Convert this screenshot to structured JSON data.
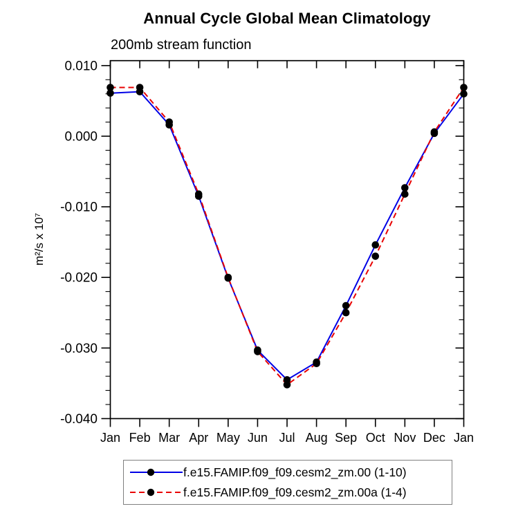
{
  "page": {
    "background": "#ffffff"
  },
  "chart_data": {
    "type": "line",
    "title": "Annual Cycle Global Mean Climatology",
    "subtitle": "200mb stream function",
    "ylabel": "m²/s x 10⁷",
    "xlabel": "",
    "categories": [
      "Jan",
      "Feb",
      "Mar",
      "Apr",
      "May",
      "Jun",
      "Jul",
      "Aug",
      "Sep",
      "Oct",
      "Nov",
      "Dec",
      "Jan"
    ],
    "y_axis": {
      "min": -0.04,
      "max": 0.0107,
      "major_tick_interval": 0.01,
      "minor_tick_interval": 0.002,
      "tick_labels": [
        "0.010",
        "0.000",
        "-0.010",
        "-0.020",
        "-0.030",
        "-0.040"
      ],
      "tick_values": [
        0.01,
        0.0,
        -0.01,
        -0.02,
        -0.03,
        -0.04
      ]
    },
    "grid": false,
    "axis_color": "#000000",
    "legend": {
      "position": "bottom-outside",
      "border_color": "#7f7f7f"
    },
    "series": [
      {
        "name": "f.e15.FAMIP.f09_f09.cesm2_zm.00 (1-10)",
        "color": "#0000e6",
        "line_style": "solid",
        "marker": "filled-circle",
        "marker_color": "#000000",
        "values": [
          0.0061,
          0.0063,
          0.0016,
          -0.0085,
          -0.0201,
          -0.0303,
          -0.0345,
          -0.032,
          -0.024,
          -0.0154,
          -0.0073,
          0.0004,
          0.006
        ]
      },
      {
        "name": "f.e15.FAMIP.f09_f09.cesm2_zm.00a (1-4)",
        "color": "#e80000",
        "line_style": "dashed",
        "marker": "filled-circle",
        "marker_color": "#000000",
        "values": [
          0.0069,
          0.0069,
          0.002,
          -0.0082,
          -0.02,
          -0.0305,
          -0.0352,
          -0.0322,
          -0.025,
          -0.017,
          -0.0082,
          0.0006,
          0.0069
        ]
      }
    ]
  }
}
